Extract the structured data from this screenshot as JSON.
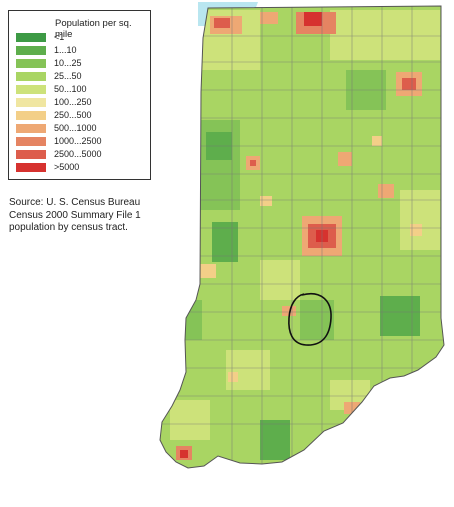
{
  "legend": {
    "title": "Population per sq. mile",
    "classes": [
      {
        "label": "<1",
        "color": "#3d9a45"
      },
      {
        "label": "1...10",
        "color": "#5eae4c"
      },
      {
        "label": "10...25",
        "color": "#85c357"
      },
      {
        "label": "25...50",
        "color": "#a9d563"
      },
      {
        "label": "50...100",
        "color": "#cde27a"
      },
      {
        "label": "100...250",
        "color": "#f0e6a1"
      },
      {
        "label": "250...500",
        "color": "#f3cf88"
      },
      {
        "label": "500...1000",
        "color": "#eea874"
      },
      {
        "label": "1000...2500",
        "color": "#e58462"
      },
      {
        "label": "2500...5000",
        "color": "#dd5d4c"
      },
      {
        "label": ">5000",
        "color": "#d6322f"
      }
    ]
  },
  "source": {
    "lines": [
      "Source: U. S. Census Bureau",
      "Census 2000 Summary File 1",
      "population by census tract."
    ]
  },
  "map": {
    "region": "Indiana",
    "lake_color": "#b9e6f0",
    "border_color": "#555555",
    "annotation": "hand-drawn circle around a county in south-central region"
  }
}
